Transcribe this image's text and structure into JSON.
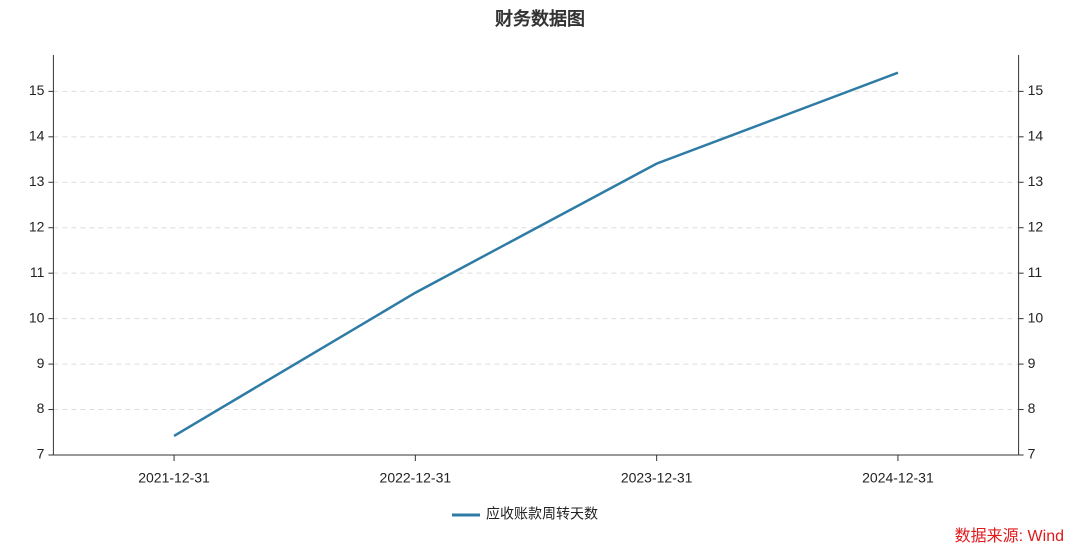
{
  "chart_data": {
    "type": "line",
    "title": "财务数据图",
    "categories": [
      "2021-12-31",
      "2022-12-31",
      "2023-12-31",
      "2024-12-31"
    ],
    "series": [
      {
        "name": "应收账款周转天数",
        "color": "#2e7ca6",
        "values": [
          7.42,
          10.57,
          13.41,
          15.41
        ]
      }
    ],
    "ylim": [
      7,
      15.8
    ],
    "yticks": [
      7,
      8,
      9,
      10,
      11,
      12,
      13,
      14,
      15
    ],
    "y2lim": [
      7,
      15.8
    ],
    "y2ticks": [
      7,
      8,
      9,
      10,
      11,
      12,
      13,
      14,
      15
    ],
    "grid": true,
    "legend": "bottom",
    "source": "数据来源: Wind"
  }
}
